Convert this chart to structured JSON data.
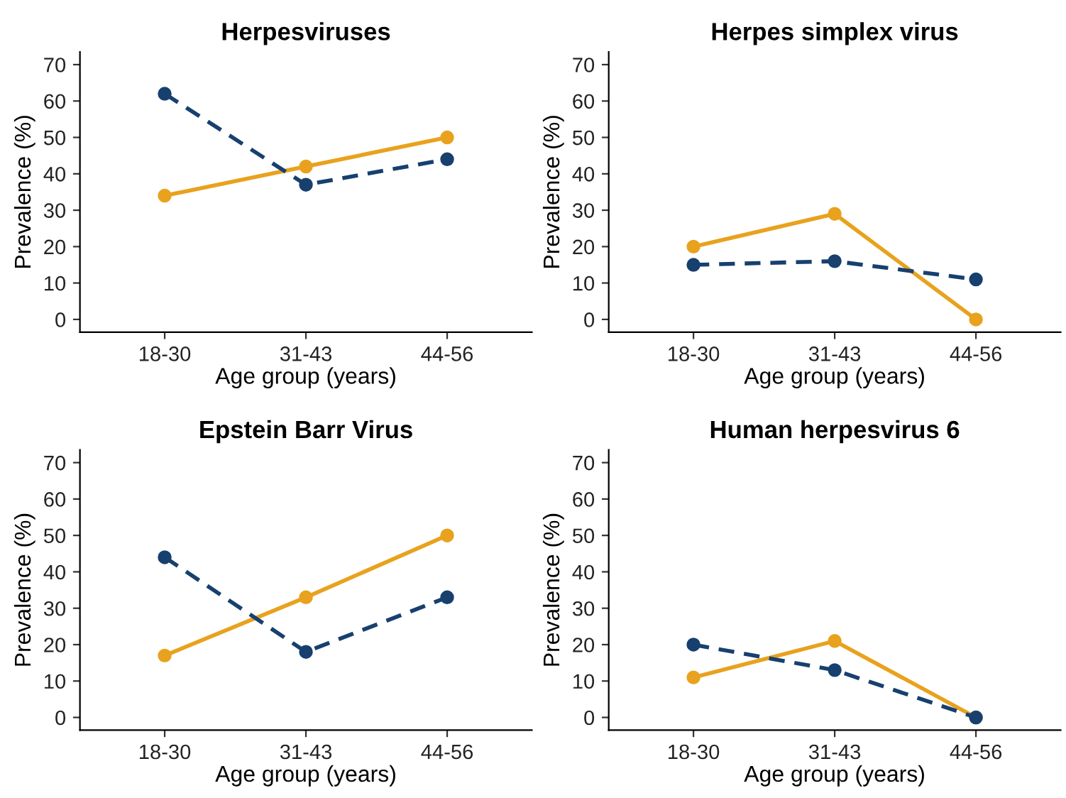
{
  "chart_data": [
    {
      "type": "line",
      "title": "Herpesviruses",
      "xlabel": "Age group (years)",
      "ylabel": "Prevalence (%)",
      "categories": [
        "18-30",
        "31-43",
        "44-56"
      ],
      "ylim": [
        -3.5,
        73.5
      ],
      "yticks": [
        0,
        10,
        20,
        30,
        40,
        50,
        60,
        70
      ],
      "grid": false,
      "marker": "circle",
      "series": [
        {
          "color": "#e8a21e",
          "line_style": "solid",
          "values": [
            34,
            42,
            50
          ]
        },
        {
          "color": "#17406f",
          "line_style": "dashed",
          "values": [
            62,
            37,
            44
          ]
        }
      ]
    },
    {
      "type": "line",
      "title": "Herpes simplex virus",
      "xlabel": "Age group (years)",
      "ylabel": "Prevalence (%)",
      "categories": [
        "18-30",
        "31-43",
        "44-56"
      ],
      "ylim": [
        -3.5,
        73.5
      ],
      "yticks": [
        0,
        10,
        20,
        30,
        40,
        50,
        60,
        70
      ],
      "grid": false,
      "marker": "circle",
      "series": [
        {
          "color": "#e8a21e",
          "line_style": "solid",
          "values": [
            20,
            29,
            0
          ]
        },
        {
          "color": "#17406f",
          "line_style": "dashed",
          "values": [
            15,
            16,
            11
          ]
        }
      ]
    },
    {
      "type": "line",
      "title": "Epstein Barr Virus",
      "xlabel": "Age group (years)",
      "ylabel": "Prevalence (%)",
      "categories": [
        "18-30",
        "31-43",
        "44-56"
      ],
      "ylim": [
        -3.5,
        73.5
      ],
      "yticks": [
        0,
        10,
        20,
        30,
        40,
        50,
        60,
        70
      ],
      "grid": false,
      "marker": "circle",
      "series": [
        {
          "color": "#e8a21e",
          "line_style": "solid",
          "values": [
            17,
            33,
            50
          ]
        },
        {
          "color": "#17406f",
          "line_style": "dashed",
          "values": [
            44,
            18,
            33
          ]
        }
      ]
    },
    {
      "type": "line",
      "title": "Human herpesvirus 6",
      "xlabel": "Age group (years)",
      "ylabel": "Prevalence (%)",
      "categories": [
        "18-30",
        "31-43",
        "44-56"
      ],
      "ylim": [
        -3.5,
        73.5
      ],
      "yticks": [
        0,
        10,
        20,
        30,
        40,
        50,
        60,
        70
      ],
      "grid": false,
      "marker": "circle",
      "series": [
        {
          "color": "#e8a21e",
          "line_style": "solid",
          "values": [
            11,
            21,
            0
          ]
        },
        {
          "color": "#17406f",
          "line_style": "dashed",
          "values": [
            20,
            13,
            0
          ]
        }
      ]
    }
  ]
}
